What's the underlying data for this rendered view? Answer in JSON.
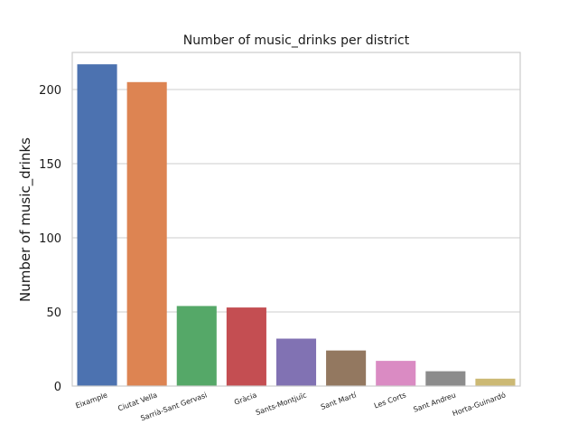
{
  "chart_data": {
    "type": "bar",
    "title": "Number of music_drinks per district",
    "xlabel": "",
    "ylabel": "Number of music_drinks",
    "ylim": [
      0,
      225
    ],
    "yticks": [
      0,
      50,
      100,
      150,
      200
    ],
    "grid": "horizontal",
    "categories": [
      "Eixample",
      "Ciutat Vella",
      "Sarrià-Sant Gervasi",
      "Gràcia",
      "Sants-Montjuïc",
      "Sant Martí",
      "Les Corts",
      "Sant Andreu",
      "Horta-Guinardó"
    ],
    "values": [
      217,
      205,
      54,
      53,
      32,
      24,
      17,
      10,
      5
    ],
    "colors": [
      "#4c72b0",
      "#dd8452",
      "#55a868",
      "#c44e52",
      "#8172b3",
      "#937860",
      "#da8bc3",
      "#8c8c8c",
      "#ccb974"
    ]
  }
}
